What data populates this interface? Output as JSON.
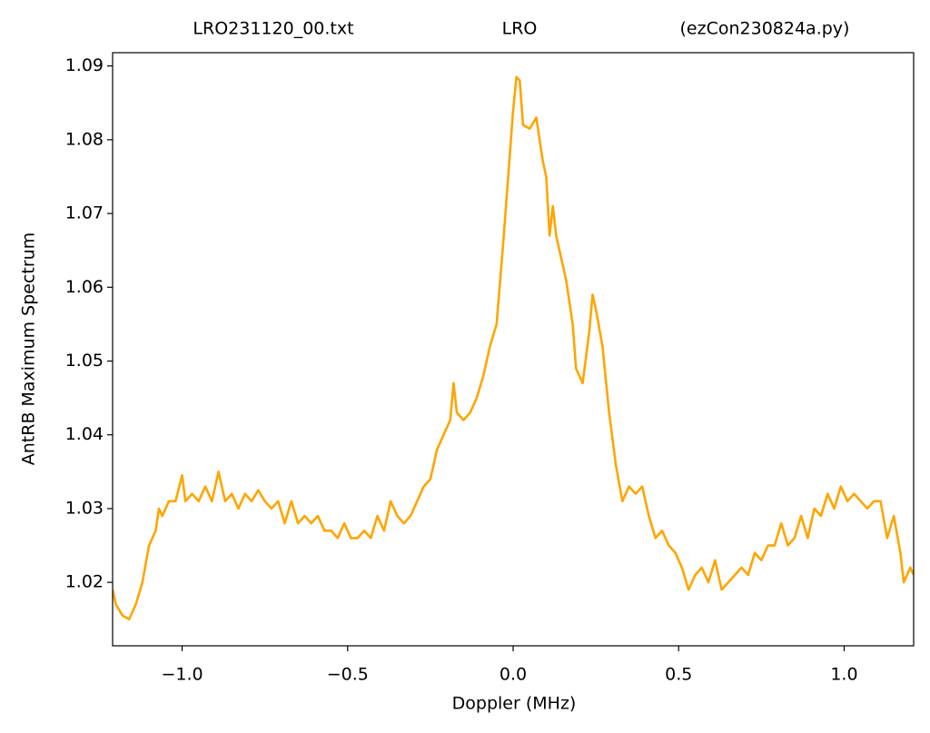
{
  "chart_data": {
    "type": "line",
    "title": [
      "LRO231120_00.txt",
      "LRO",
      "(ezCon230824a.py)"
    ],
    "xlabel": "Doppler (MHz)",
    "ylabel": "AntRB Maximum Spectrum",
    "xlim": [
      -1.21,
      1.21
    ],
    "ylim": [
      1.0114,
      1.0918
    ],
    "xticks": [
      {
        "value": -1.0,
        "label": "−1.0"
      },
      {
        "value": -0.5,
        "label": "−0.5"
      },
      {
        "value": 0,
        "label": "0.0"
      },
      {
        "value": 0.5,
        "label": "0.5"
      },
      {
        "value": 1.0,
        "label": "1.0"
      }
    ],
    "yticks": [
      1.02,
      1.03,
      1.04,
      1.05,
      1.06,
      1.07,
      1.08,
      1.09
    ],
    "grid": false,
    "series": [
      {
        "color": "#ffa500",
        "x": [
          -1.21,
          -1.2,
          -1.18,
          -1.16,
          -1.14,
          -1.12,
          -1.1,
          -1.08,
          -1.07,
          -1.06,
          -1.04,
          -1.02,
          -1.0,
          -0.99,
          -0.97,
          -0.95,
          -0.93,
          -0.91,
          -0.89,
          -0.87,
          -0.85,
          -0.83,
          -0.81,
          -0.79,
          -0.77,
          -0.75,
          -0.73,
          -0.71,
          -0.69,
          -0.67,
          -0.65,
          -0.63,
          -0.61,
          -0.59,
          -0.57,
          -0.55,
          -0.53,
          -0.51,
          -0.49,
          -0.47,
          -0.45,
          -0.43,
          -0.41,
          -0.39,
          -0.37,
          -0.35,
          -0.33,
          -0.31,
          -0.29,
          -0.27,
          -0.25,
          -0.23,
          -0.21,
          -0.19,
          -0.18,
          -0.17,
          -0.15,
          -0.13,
          -0.11,
          -0.09,
          -0.07,
          -0.05,
          -0.03,
          -0.01,
          0.0,
          0.01,
          0.02,
          0.03,
          0.05,
          0.07,
          0.09,
          0.1,
          0.11,
          0.12,
          0.13,
          0.15,
          0.16,
          0.18,
          0.19,
          0.21,
          0.23,
          0.24,
          0.25,
          0.27,
          0.29,
          0.31,
          0.33,
          0.35,
          0.37,
          0.39,
          0.41,
          0.43,
          0.45,
          0.47,
          0.49,
          0.51,
          0.53,
          0.55,
          0.57,
          0.59,
          0.61,
          0.63,
          0.65,
          0.67,
          0.69,
          0.71,
          0.73,
          0.75,
          0.77,
          0.79,
          0.81,
          0.83,
          0.85,
          0.87,
          0.89,
          0.91,
          0.93,
          0.95,
          0.97,
          0.99,
          1.01,
          1.03,
          1.05,
          1.07,
          1.09,
          1.11,
          1.13,
          1.15,
          1.17,
          1.18,
          1.2,
          1.21
        ],
        "values": [
          1.019,
          1.017,
          1.0155,
          1.015,
          1.017,
          1.02,
          1.025,
          1.027,
          1.03,
          1.029,
          1.031,
          1.031,
          1.0345,
          1.031,
          1.032,
          1.031,
          1.033,
          1.031,
          1.035,
          1.031,
          1.032,
          1.03,
          1.032,
          1.031,
          1.0325,
          1.031,
          1.03,
          1.031,
          1.028,
          1.031,
          1.028,
          1.029,
          1.028,
          1.029,
          1.027,
          1.027,
          1.026,
          1.028,
          1.026,
          1.026,
          1.027,
          1.026,
          1.029,
          1.027,
          1.031,
          1.029,
          1.028,
          1.029,
          1.031,
          1.033,
          1.034,
          1.038,
          1.04,
          1.042,
          1.047,
          1.043,
          1.042,
          1.043,
          1.045,
          1.048,
          1.052,
          1.055,
          1.066,
          1.078,
          1.084,
          1.0885,
          1.088,
          1.082,
          1.0815,
          1.083,
          1.077,
          1.075,
          1.067,
          1.071,
          1.067,
          1.063,
          1.061,
          1.055,
          1.049,
          1.047,
          1.054,
          1.059,
          1.057,
          1.052,
          1.043,
          1.036,
          1.031,
          1.033,
          1.032,
          1.033,
          1.029,
          1.026,
          1.027,
          1.025,
          1.024,
          1.022,
          1.019,
          1.021,
          1.022,
          1.02,
          1.023,
          1.019,
          1.02,
          1.021,
          1.022,
          1.021,
          1.024,
          1.023,
          1.025,
          1.025,
          1.028,
          1.025,
          1.026,
          1.029,
          1.026,
          1.03,
          1.029,
          1.032,
          1.03,
          1.033,
          1.031,
          1.032,
          1.031,
          1.03,
          1.031,
          1.031,
          1.026,
          1.029,
          1.024,
          1.02,
          1.022,
          1.021
        ]
      }
    ]
  }
}
